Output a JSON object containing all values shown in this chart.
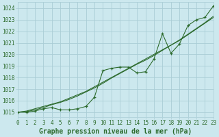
{
  "hours": [
    0,
    1,
    2,
    3,
    4,
    5,
    6,
    7,
    8,
    9,
    10,
    11,
    12,
    13,
    14,
    15,
    16,
    17,
    18,
    19,
    20,
    21,
    22,
    23
  ],
  "pressure_actual": [
    1015.0,
    1015.0,
    1015.1,
    1015.3,
    1015.4,
    1015.2,
    1015.2,
    1015.3,
    1015.5,
    1016.3,
    1018.6,
    1018.8,
    1018.9,
    1018.9,
    1018.4,
    1018.5,
    1019.6,
    1021.8,
    1020.1,
    1020.9,
    1022.5,
    1023.0,
    1023.2,
    1024.2
  ],
  "pressure_trend1": [
    1015.0,
    1015.1,
    1015.3,
    1015.5,
    1015.7,
    1015.9,
    1016.2,
    1016.5,
    1016.8,
    1017.2,
    1017.6,
    1018.0,
    1018.4,
    1018.8,
    1019.2,
    1019.6,
    1020.0,
    1020.4,
    1020.8,
    1021.2,
    1021.7,
    1022.2,
    1022.7,
    1023.2
  ],
  "pressure_trend2": [
    1015.0,
    1015.05,
    1015.2,
    1015.4,
    1015.65,
    1015.85,
    1016.1,
    1016.4,
    1016.75,
    1017.1,
    1017.5,
    1017.95,
    1018.35,
    1018.75,
    1019.15,
    1019.5,
    1019.9,
    1020.35,
    1020.8,
    1021.25,
    1021.75,
    1022.25,
    1022.75,
    1023.3
  ],
  "bg_color": "#cce8ee",
  "grid_color": "#aacdd6",
  "line_color": "#2d6b2d",
  "text_color": "#2d6b2d",
  "ylabel_values": [
    1015,
    1016,
    1017,
    1018,
    1019,
    1020,
    1021,
    1022,
    1023,
    1024
  ],
  "ylim": [
    1014.6,
    1024.5
  ],
  "xlim": [
    0,
    23
  ],
  "xlabel": "Graphe pression niveau de la mer (hPa)",
  "xlabel_fontsize": 7,
  "tick_fontsize": 5.5
}
